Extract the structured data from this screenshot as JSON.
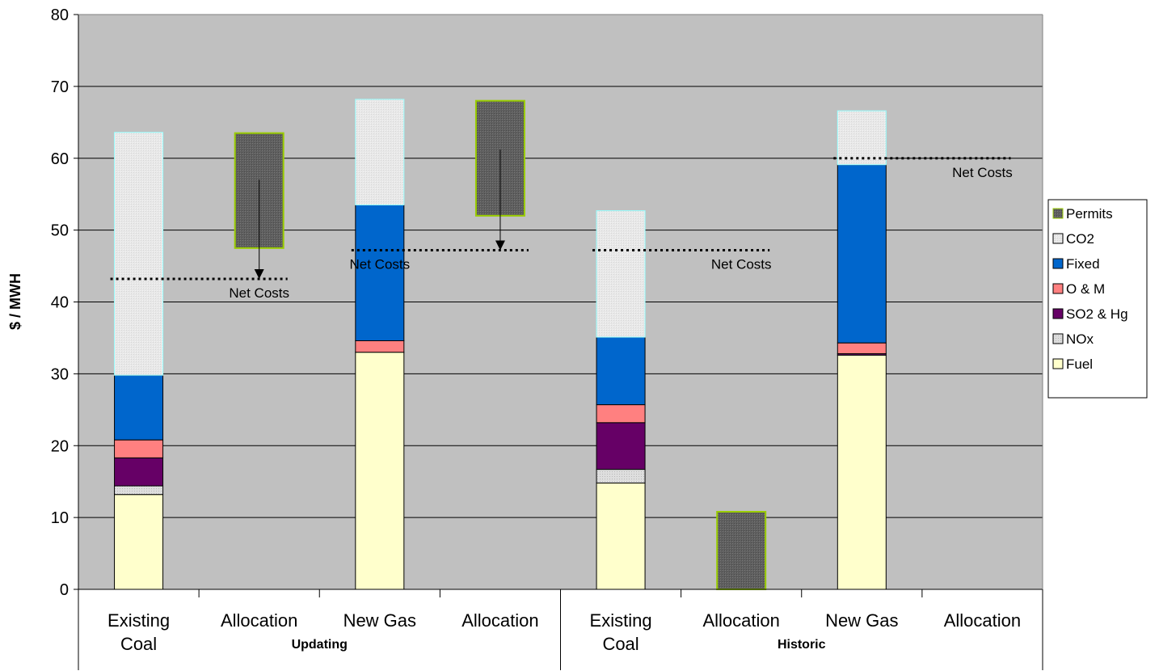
{
  "chart_data": {
    "type": "bar",
    "stacked": true,
    "title": "",
    "xlabel": "",
    "ylabel": "$ / MWH",
    "ylim": [
      0,
      80
    ],
    "yticks": [
      0,
      10,
      20,
      30,
      40,
      50,
      60,
      70,
      80
    ],
    "grid": true,
    "legend_position": "right",
    "groups": [
      {
        "label": "Updating",
        "categories": [
          0,
          1,
          2,
          3
        ]
      },
      {
        "label": "Historic",
        "categories": [
          4,
          5,
          6,
          7
        ]
      }
    ],
    "categories": [
      {
        "lines": [
          "Existing",
          "Coal"
        ]
      },
      {
        "lines": [
          "Allocation"
        ]
      },
      {
        "lines": [
          "New Gas"
        ]
      },
      {
        "lines": [
          "Allocation"
        ]
      },
      {
        "lines": [
          "Existing",
          "Coal"
        ]
      },
      {
        "lines": [
          "Allocation"
        ]
      },
      {
        "lines": [
          "New Gas"
        ]
      },
      {
        "lines": [
          "Allocation"
        ]
      }
    ],
    "series": [
      {
        "name": "Fuel",
        "color": "#ffffcc",
        "values": [
          13.2,
          0,
          33.0,
          0,
          14.8,
          0,
          32.6,
          0
        ]
      },
      {
        "name": "NOx",
        "color": "#d9d9d9",
        "values": [
          1.2,
          0,
          0,
          0,
          1.9,
          0,
          0,
          0
        ]
      },
      {
        "name": "SO2 & Hg",
        "color": "#660066",
        "values": [
          3.9,
          0,
          0,
          0,
          6.5,
          0,
          0.2,
          0
        ]
      },
      {
        "name": "O & M",
        "color": "#ff8080",
        "values": [
          2.5,
          0,
          1.6,
          0,
          2.5,
          0,
          1.5,
          0
        ]
      },
      {
        "name": "Fixed",
        "color": "#0066cc",
        "values": [
          9.0,
          0,
          18.9,
          0,
          9.4,
          0,
          24.8,
          0
        ]
      },
      {
        "name": "CO2",
        "color": "#e6e6e6",
        "values": [
          33.8,
          0,
          14.7,
          0,
          17.6,
          0,
          7.5,
          0
        ]
      },
      {
        "name": "Permits",
        "color": "#5f5f5f",
        "floating": [
          null,
          [
            47.5,
            63.5
          ],
          null,
          [
            52.0,
            68.0
          ],
          null,
          [
            0,
            10.8
          ],
          null,
          null
        ]
      }
    ],
    "net_cost_lines": [
      {
        "value": 43.2,
        "from_category": 0,
        "to_category": 1,
        "label": "Net Costs",
        "label_category": 1
      },
      {
        "value": 47.2,
        "from_category": 2,
        "to_category": 3,
        "label": "Net Costs",
        "label_category": 2
      },
      {
        "value": 47.2,
        "from_category": 4,
        "to_category": 5,
        "label": "Net Costs",
        "label_category": 5
      },
      {
        "value": 60.0,
        "from_category": 6,
        "to_category": 7,
        "label": "Net Costs",
        "label_category": 7
      }
    ],
    "arrows": [
      {
        "category": 1,
        "from": 57.0,
        "to": 43.2
      },
      {
        "category": 3,
        "from": 61.2,
        "to": 47.2
      }
    ]
  }
}
